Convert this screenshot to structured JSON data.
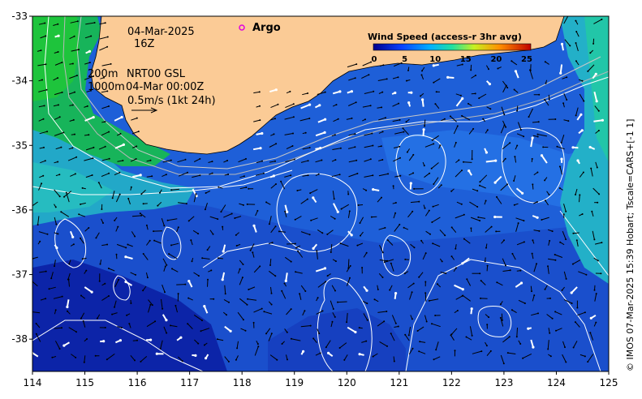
{
  "map": {
    "date": "04-Mar-2025",
    "time": "16Z",
    "contour_line1_depth": "200m",
    "contour_line1_product": "NRT00 GSL",
    "contour_line2_depth": "1000m",
    "contour_line2_datetime": "04-Mar 00:00Z",
    "vector_scale": "0.5m/s (1kt 24h)",
    "argo_label": "Argo",
    "credit": "© IMOS 07-Mar-2025 15:39 Hobart; Tscale=CARS+[-1 1]",
    "x_ticks": [
      "114",
      "115",
      "116",
      "117",
      "118",
      "119",
      "120",
      "121",
      "122",
      "123",
      "124",
      "125"
    ],
    "y_ticks": [
      "-33",
      "-34",
      "-35",
      "-36",
      "-37",
      "-38"
    ],
    "lon_range": [
      114,
      125
    ],
    "lat_range": [
      -38.5,
      -33
    ]
  },
  "colorbar": {
    "title": "Wind Speed (access-r 3hr avg)",
    "ticks": [
      "0",
      "5",
      "10",
      "15",
      "20",
      "25"
    ],
    "range": [
      0,
      25
    ]
  },
  "colors": {
    "land": "#fbcb96",
    "deep": "#0a1fa8",
    "mid": "#1f6fe0",
    "shelf": "#22b3c4",
    "warm": "#19c24a",
    "argo": "#e000e0"
  }
}
